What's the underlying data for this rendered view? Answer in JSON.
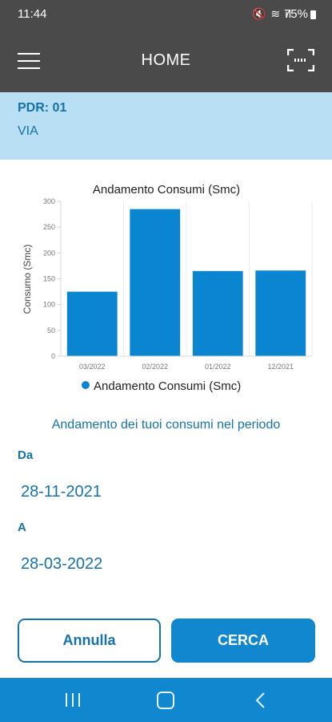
{
  "status_bar": {
    "time": "11:44",
    "icons": "🔇 ≋ ıl",
    "battery": "75%"
  },
  "app_bar": {
    "title": "HOME",
    "menu_icon": "hamburger-menu-icon",
    "scan_icon": "barcode-scan-icon"
  },
  "info": {
    "pdr": "PDR: 01",
    "via": "VIA"
  },
  "chart_data": {
    "type": "bar",
    "title": "Andamento Consumi (Smc)",
    "ylabel": "Consumo (Smc)",
    "xlabel": "",
    "categories": [
      "03/2022",
      "02/2022",
      "01/2022",
      "12/2021"
    ],
    "series": [
      {
        "name": "Andamento Consumi (Smc)",
        "values": [
          125,
          285,
          165,
          166
        ]
      }
    ],
    "ylim": [
      0,
      300
    ],
    "yticks": [
      "0",
      "50",
      "100",
      "150",
      "200",
      "250",
      "300"
    ],
    "color": "#0a86d0",
    "grid": true,
    "legend": "bottom"
  },
  "period": {
    "description": "Andamento dei tuoi consumi nel periodo",
    "from_label": "Da",
    "from_value": "28-11-2021",
    "to_label": "A",
    "to_value": "28-03-2022"
  },
  "actions": {
    "cancel": "Annulla",
    "search": "CERCA"
  },
  "colors": {
    "header": "#4a4a4a",
    "info_background": "#b8dff3",
    "accent": "#1572ab",
    "primary": "#1087cf"
  }
}
